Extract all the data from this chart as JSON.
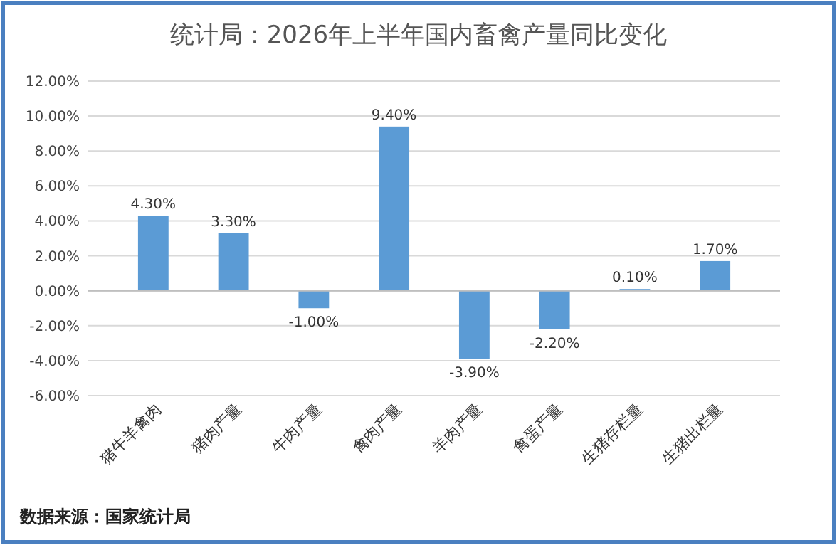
{
  "chart_data": {
    "type": "bar",
    "title": "统计局：2026年上半年国内畜禽产量同比变化",
    "categories": [
      "猪牛羊禽肉",
      "猪肉产量",
      "牛肉产量",
      "禽肉产量",
      "羊肉产量",
      "禽蛋产量",
      "生猪存栏量",
      "生猪出栏量"
    ],
    "values": [
      4.3,
      3.3,
      -1.0,
      9.4,
      -3.9,
      -2.2,
      0.1,
      1.7
    ],
    "value_labels": [
      "4.30%",
      "3.30%",
      "-1.00%",
      "9.40%",
      "-3.90%",
      "-2.20%",
      "0.10%",
      "1.70%"
    ],
    "color": "#5b9bd5",
    "ylim": [
      -6,
      12
    ],
    "yticks": [
      {
        "value": -6,
        "label": "-6.00%"
      },
      {
        "value": -4,
        "label": "-4.00%"
      },
      {
        "value": -2,
        "label": "-2.00%"
      },
      {
        "value": 0,
        "label": "0.00%"
      },
      {
        "value": 2,
        "label": "2.00%"
      },
      {
        "value": 4,
        "label": "4.00%"
      },
      {
        "value": 6,
        "label": "6.00%"
      },
      {
        "value": 8,
        "label": "8.00%"
      },
      {
        "value": 10,
        "label": "10.00%"
      },
      {
        "value": 12,
        "label": "12.00%"
      }
    ],
    "grid": "y",
    "annotations": [
      "数据来源：国家统计局"
    ]
  }
}
